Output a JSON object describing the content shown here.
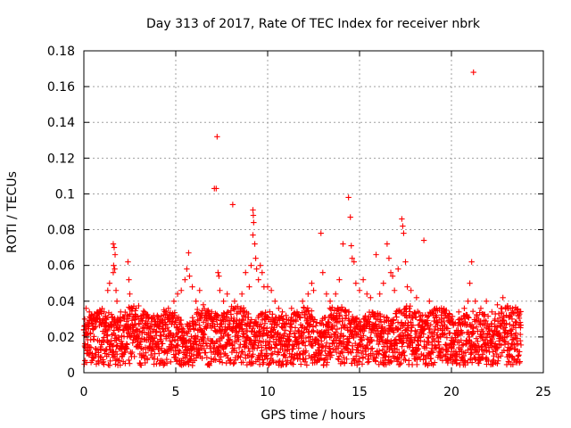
{
  "chart_data": {
    "type": "scatter",
    "title": "Day 313 of 2017, Rate Of TEC Index for receiver nbrk",
    "xlabel": "GPS time / hours",
    "ylabel": "ROTI / TECUs",
    "xlim": [
      0,
      25
    ],
    "ylim": [
      0,
      0.18
    ],
    "xticks": [
      "0",
      "5",
      "10",
      "15",
      "20",
      "25"
    ],
    "yticks": [
      "0",
      "0.02",
      "0.04",
      "0.06",
      "0.08",
      "0.1",
      "0.12",
      "0.14",
      "0.16",
      "0.18"
    ],
    "grid": true,
    "marker": "+",
    "color": "#ff0000",
    "series": [
      {
        "name": "",
        "points": [
          [
            0.05,
            0.03
          ],
          [
            0.12,
            0.036
          ],
          [
            0.2,
            0.028
          ],
          [
            0.3,
            0.034
          ],
          [
            0.4,
            0.032
          ],
          [
            0.5,
            0.026
          ],
          [
            0.7,
            0.03
          ],
          [
            0.9,
            0.028
          ],
          [
            1.1,
            0.034
          ],
          [
            1.3,
            0.046
          ],
          [
            1.4,
            0.05
          ],
          [
            1.6,
            0.072
          ],
          [
            1.65,
            0.07
          ],
          [
            1.7,
            0.066
          ],
          [
            1.62,
            0.06
          ],
          [
            1.68,
            0.058
          ],
          [
            1.6,
            0.056
          ],
          [
            1.75,
            0.046
          ],
          [
            1.8,
            0.04
          ],
          [
            2.0,
            0.034
          ],
          [
            2.2,
            0.03
          ],
          [
            2.4,
            0.062
          ],
          [
            2.45,
            0.052
          ],
          [
            2.5,
            0.044
          ],
          [
            2.6,
            0.036
          ],
          [
            2.8,
            0.03
          ],
          [
            3.0,
            0.03
          ],
          [
            3.3,
            0.034
          ],
          [
            3.5,
            0.026
          ],
          [
            3.8,
            0.03
          ],
          [
            4.0,
            0.032
          ],
          [
            4.3,
            0.028
          ],
          [
            4.6,
            0.036
          ],
          [
            4.9,
            0.04
          ],
          [
            5.1,
            0.044
          ],
          [
            5.3,
            0.046
          ],
          [
            5.5,
            0.052
          ],
          [
            5.6,
            0.058
          ],
          [
            5.7,
            0.067
          ],
          [
            5.75,
            0.054
          ],
          [
            5.9,
            0.048
          ],
          [
            6.1,
            0.04
          ],
          [
            6.3,
            0.046
          ],
          [
            6.5,
            0.038
          ],
          [
            6.8,
            0.034
          ],
          [
            7.0,
            0.03
          ],
          [
            7.1,
            0.103
          ],
          [
            7.2,
            0.103
          ],
          [
            7.25,
            0.132
          ],
          [
            7.3,
            0.056
          ],
          [
            7.35,
            0.054
          ],
          [
            7.4,
            0.046
          ],
          [
            7.6,
            0.04
          ],
          [
            7.8,
            0.044
          ],
          [
            8.1,
            0.094
          ],
          [
            8.2,
            0.04
          ],
          [
            8.4,
            0.034
          ],
          [
            8.6,
            0.044
          ],
          [
            8.8,
            0.056
          ],
          [
            9.0,
            0.048
          ],
          [
            9.1,
            0.06
          ],
          [
            9.2,
            0.091
          ],
          [
            9.22,
            0.088
          ],
          [
            9.24,
            0.084
          ],
          [
            9.2,
            0.077
          ],
          [
            9.3,
            0.072
          ],
          [
            9.35,
            0.064
          ],
          [
            9.4,
            0.058
          ],
          [
            9.5,
            0.052
          ],
          [
            9.6,
            0.06
          ],
          [
            9.7,
            0.056
          ],
          [
            9.8,
            0.048
          ],
          [
            10.0,
            0.048
          ],
          [
            10.2,
            0.046
          ],
          [
            10.4,
            0.04
          ],
          [
            10.6,
            0.036
          ],
          [
            10.8,
            0.034
          ],
          [
            11.0,
            0.032
          ],
          [
            11.3,
            0.036
          ],
          [
            11.6,
            0.034
          ],
          [
            11.9,
            0.04
          ],
          [
            12.2,
            0.044
          ],
          [
            12.4,
            0.05
          ],
          [
            12.5,
            0.046
          ],
          [
            12.9,
            0.078
          ],
          [
            13.0,
            0.056
          ],
          [
            13.2,
            0.044
          ],
          [
            13.4,
            0.04
          ],
          [
            13.7,
            0.044
          ],
          [
            13.9,
            0.052
          ],
          [
            14.1,
            0.072
          ],
          [
            14.4,
            0.098
          ],
          [
            14.5,
            0.087
          ],
          [
            14.55,
            0.071
          ],
          [
            14.6,
            0.064
          ],
          [
            14.7,
            0.062
          ],
          [
            14.8,
            0.05
          ],
          [
            15.0,
            0.046
          ],
          [
            15.2,
            0.052
          ],
          [
            15.4,
            0.044
          ],
          [
            15.6,
            0.042
          ],
          [
            15.9,
            0.066
          ],
          [
            16.1,
            0.044
          ],
          [
            16.3,
            0.05
          ],
          [
            16.5,
            0.072
          ],
          [
            16.6,
            0.064
          ],
          [
            16.7,
            0.056
          ],
          [
            16.8,
            0.054
          ],
          [
            16.9,
            0.046
          ],
          [
            17.1,
            0.058
          ],
          [
            17.3,
            0.086
          ],
          [
            17.35,
            0.082
          ],
          [
            17.4,
            0.078
          ],
          [
            17.5,
            0.062
          ],
          [
            17.6,
            0.048
          ],
          [
            17.8,
            0.046
          ],
          [
            18.1,
            0.042
          ],
          [
            18.5,
            0.074
          ],
          [
            18.8,
            0.04
          ],
          [
            19.2,
            0.036
          ],
          [
            19.6,
            0.034
          ],
          [
            20.0,
            0.03
          ],
          [
            20.4,
            0.034
          ],
          [
            20.7,
            0.036
          ],
          [
            20.9,
            0.04
          ],
          [
            21.0,
            0.05
          ],
          [
            21.1,
            0.062
          ],
          [
            21.2,
            0.168
          ],
          [
            21.3,
            0.04
          ],
          [
            21.6,
            0.036
          ],
          [
            21.9,
            0.04
          ],
          [
            22.2,
            0.034
          ],
          [
            22.5,
            0.038
          ],
          [
            22.8,
            0.042
          ],
          [
            23.1,
            0.036
          ],
          [
            23.3,
            0.03
          ],
          [
            23.5,
            0.028
          ],
          [
            23.7,
            0.034
          ]
        ]
      }
    ],
    "dense_band": {
      "x_range": [
        0,
        23.8
      ],
      "y_range": [
        0.004,
        0.028
      ]
    }
  }
}
